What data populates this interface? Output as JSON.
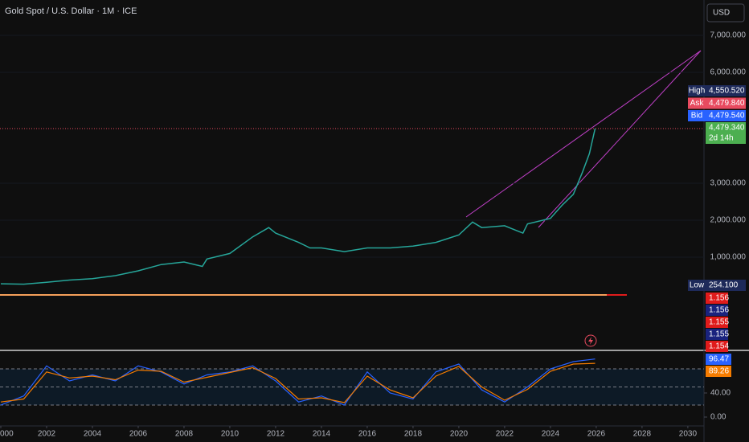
{
  "header": {
    "title": "Gold Spot / U.S. Dollar · 1M · ICE",
    "currency": "USD"
  },
  "chart_data": [
    {
      "type": "line",
      "color": "#26a69a",
      "x": [
        2000,
        2001,
        2002,
        2003,
        2004,
        2005,
        2006,
        2007,
        2008,
        2008.8,
        2009,
        2010,
        2011,
        2011.7,
        2012,
        2013,
        2013.5,
        2014,
        2015,
        2016,
        2017,
        2018,
        2019,
        2019.5,
        2020,
        2020.6,
        2021,
        2022,
        2022.8,
        2023,
        2024,
        2024.5,
        2025,
        2025.4,
        2025.7,
        2025.95
      ],
      "values": [
        280,
        270,
        320,
        380,
        420,
        500,
        630,
        800,
        870,
        750,
        950,
        1100,
        1550,
        1800,
        1650,
        1400,
        1250,
        1250,
        1150,
        1250,
        1250,
        1300,
        1400,
        1500,
        1600,
        1950,
        1800,
        1850,
        1650,
        1900,
        2050,
        2400,
        2700,
        3300,
        3800,
        4479.34
      ],
      "xlim": [
        2000,
        2030.67
      ],
      "ylim": [
        -1522,
        7957
      ],
      "xticks": [
        {
          "value": 2000,
          "label": "000"
        },
        2002,
        2004,
        2006,
        2008,
        2010,
        2012,
        2014,
        2016,
        2018,
        2020,
        2022,
        2024,
        2026,
        2028,
        2030
      ],
      "yticks": [
        {
          "value": 7000,
          "label": "7,000.000"
        },
        {
          "value": 6000,
          "label": "6,000.000"
        },
        {
          "value": 3000,
          "label": "3,000.000"
        },
        {
          "value": 2000,
          "label": "2,000.000"
        },
        {
          "value": 1000,
          "label": "1,000.000"
        }
      ],
      "markers": [
        {
          "name": "High",
          "label": "4,550.520",
          "color": "#1e2a5a"
        },
        {
          "name": "Ask",
          "label": "4,479.840",
          "color": "#e84a5f"
        },
        {
          "name": "Bid",
          "label": "4,479.540",
          "color": "#2962ff"
        }
      ],
      "last_label": "4,479.340",
      "countdown": "2d 14h",
      "low": {
        "name": "Low",
        "label": "254.100"
      },
      "extra_labels": [
        {
          "label": "1.156",
          "color": "#e01b1b"
        },
        {
          "label": "1.156",
          "color": "#1a237e"
        },
        {
          "label": "1.155",
          "color": "#e01b1b"
        },
        {
          "label": "1.155",
          "color": "#1a237e"
        },
        {
          "label": "1.154",
          "color": "#e01b1b"
        }
      ]
    },
    {
      "type": "line",
      "x": [
        2000,
        2001,
        2002,
        2003,
        2004,
        2005,
        2006,
        2007,
        2008,
        2009,
        2010,
        2011,
        2012,
        2013,
        2014,
        2015,
        2016,
        2017,
        2018,
        2019,
        2020,
        2021,
        2022,
        2023,
        2024,
        2025,
        2025.95
      ],
      "series": [
        {
          "color": "#2962ff",
          "values": [
            20,
            35,
            85,
            60,
            70,
            60,
            85,
            75,
            55,
            70,
            75,
            85,
            60,
            25,
            35,
            20,
            75,
            40,
            30,
            75,
            88,
            45,
            25,
            50,
            80,
            92,
            96.47
          ],
          "last_label": "96.47"
        },
        {
          "color": "#f57c00",
          "values": [
            25,
            30,
            75,
            65,
            68,
            62,
            78,
            76,
            58,
            66,
            74,
            82,
            64,
            30,
            32,
            24,
            68,
            45,
            32,
            68,
            84,
            50,
            28,
            46,
            76,
            88,
            89.26
          ],
          "last_label": "89.26"
        }
      ],
      "ylim": [
        -14.7,
        110.7
      ],
      "yticks": [
        {
          "value": 40,
          "label": "40.00"
        },
        {
          "value": 0,
          "label": "0.00"
        }
      ],
      "levels": [
        80,
        50,
        20
      ]
    }
  ]
}
